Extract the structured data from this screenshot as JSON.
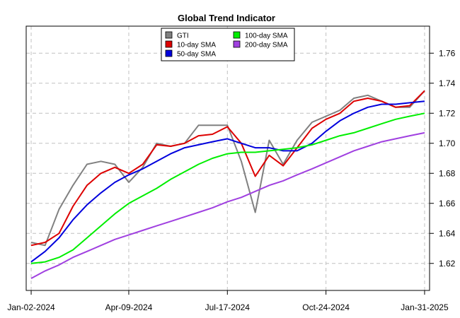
{
  "chart_data": {
    "type": "line",
    "title": "Global Trend Indicator",
    "xlabel": "",
    "ylabel": "",
    "x_ticks": [
      "Jan-02-2024",
      "Apr-09-2024",
      "Jul-17-2024",
      "Oct-24-2024",
      "Jan-31-2025"
    ],
    "y_ticks": [
      1.62,
      1.64,
      1.66,
      1.68,
      1.7,
      1.72,
      1.74,
      1.76
    ],
    "y_tick_labels": [
      "1.62",
      "1.64",
      "1.66",
      "1.68",
      "1.70",
      "1.72",
      "1.74",
      "1.76"
    ],
    "xlim": [
      "2023-12-28",
      "2025-02-05"
    ],
    "ylim": [
      1.602,
      1.778
    ],
    "grid": true,
    "axis_side_y": "right",
    "legend_position": "top-center",
    "x_dates": [
      "2024-01-02",
      "2024-01-16",
      "2024-01-30",
      "2024-02-13",
      "2024-02-27",
      "2024-03-12",
      "2024-03-26",
      "2024-04-09",
      "2024-04-23",
      "2024-05-07",
      "2024-05-21",
      "2024-06-04",
      "2024-06-18",
      "2024-07-02",
      "2024-07-17",
      "2024-07-31",
      "2024-08-14",
      "2024-08-28",
      "2024-09-11",
      "2024-09-25",
      "2024-10-10",
      "2024-10-24",
      "2024-11-07",
      "2024-11-21",
      "2024-12-05",
      "2024-12-19",
      "2025-01-02",
      "2025-01-16",
      "2025-01-31"
    ],
    "series": [
      {
        "name": "GTI",
        "color": "#808080",
        "width": 2,
        "values": [
          1.634,
          1.632,
          1.656,
          1.672,
          1.686,
          1.688,
          1.686,
          1.674,
          1.684,
          1.7,
          1.698,
          1.7,
          1.712,
          1.712,
          1.712,
          1.688,
          1.654,
          1.702,
          1.686,
          1.702,
          1.714,
          1.718,
          1.722,
          1.73,
          1.732,
          1.728,
          1.724,
          1.724,
          1.735
        ]
      },
      {
        "name": "10-day SMA",
        "color": "#dd0000",
        "width": 2,
        "values": [
          1.632,
          1.634,
          1.64,
          1.658,
          1.672,
          1.68,
          1.684,
          1.68,
          1.686,
          1.699,
          1.698,
          1.7,
          1.705,
          1.706,
          1.711,
          1.7,
          1.678,
          1.692,
          1.685,
          1.697,
          1.71,
          1.716,
          1.72,
          1.728,
          1.73,
          1.728,
          1.724,
          1.725,
          1.735
        ]
      },
      {
        "name": "50-day SMA",
        "color": "#0000dd",
        "width": 2,
        "values": [
          1.621,
          1.628,
          1.637,
          1.649,
          1.659,
          1.667,
          1.674,
          1.679,
          1.683,
          1.688,
          1.693,
          1.697,
          1.699,
          1.701,
          1.703,
          1.7,
          1.697,
          1.697,
          1.695,
          1.695,
          1.7,
          1.708,
          1.715,
          1.72,
          1.724,
          1.726,
          1.726,
          1.727,
          1.728
        ]
      },
      {
        "name": "100-day SMA",
        "color": "#00ee00",
        "width": 2,
        "values": [
          1.62,
          1.621,
          1.624,
          1.629,
          1.637,
          1.645,
          1.653,
          1.66,
          1.665,
          1.67,
          1.676,
          1.681,
          1.686,
          1.69,
          1.693,
          1.694,
          1.694,
          1.695,
          1.696,
          1.697,
          1.699,
          1.702,
          1.705,
          1.707,
          1.71,
          1.713,
          1.716,
          1.718,
          1.72
        ]
      },
      {
        "name": "200-day SMA",
        "color": "#a040e0",
        "width": 2,
        "values": [
          1.61,
          1.615,
          1.619,
          1.624,
          1.628,
          1.632,
          1.636,
          1.639,
          1.642,
          1.645,
          1.648,
          1.651,
          1.654,
          1.657,
          1.661,
          1.664,
          1.668,
          1.672,
          1.675,
          1.679,
          1.683,
          1.687,
          1.691,
          1.695,
          1.698,
          1.701,
          1.703,
          1.705,
          1.707
        ]
      }
    ]
  }
}
